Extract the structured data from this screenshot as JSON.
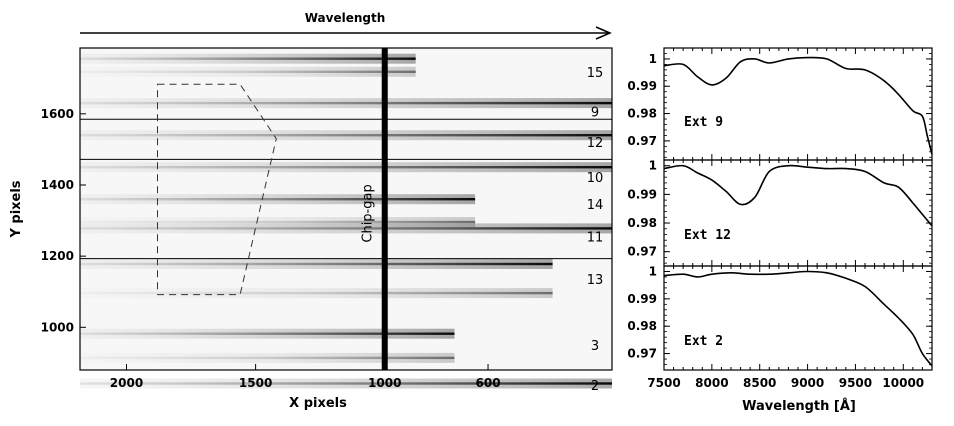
{
  "chart_data": [
    {
      "type": "heatmap",
      "top_label": "Wavelength",
      "xlabel": "X pixels",
      "ylabel": "Y pixels",
      "x_ticks": [
        "2000",
        "1500",
        "1000",
        "600"
      ],
      "y_ticks": [
        "1000",
        "1200",
        "1400",
        "1600"
      ],
      "xlim": [
        2180,
        120
      ],
      "ylim": [
        880,
        1785
      ],
      "gap_label": "Chip-gap",
      "gap_x": 1000,
      "slit_numbers": [
        {
          "label": "15",
          "y": 1715
        },
        {
          "label": "9",
          "y": 1604
        },
        {
          "label": "12",
          "y": 1518
        },
        {
          "label": "10",
          "y": 1420
        },
        {
          "label": "14",
          "y": 1344
        },
        {
          "label": "11",
          "y": 1253
        },
        {
          "label": "13",
          "y": 1133
        },
        {
          "label": "3",
          "y": 947
        },
        {
          "label": "2",
          "y": 835
        }
      ],
      "spectra": [
        {
          "y": 1755,
          "x_end": 880,
          "dark": true
        },
        {
          "y": 1718,
          "x_end": 880,
          "dark": false
        },
        {
          "y": 1630,
          "x_end": 120,
          "dark": true
        },
        {
          "y": 1540,
          "x_end": 120,
          "dark": true
        },
        {
          "y": 1450,
          "x_end": 120,
          "dark": true
        },
        {
          "y": 1360,
          "x_end": 650,
          "dark": true
        },
        {
          "y": 1296,
          "x_end": 650,
          "dark": false
        },
        {
          "y": 1278,
          "x_end": 120,
          "dark": true
        },
        {
          "y": 1178,
          "x_end": 350,
          "dark": true
        },
        {
          "y": 1096,
          "x_end": 350,
          "dark": false
        },
        {
          "y": 982,
          "x_end": 730,
          "dark": true
        },
        {
          "y": 914,
          "x_end": 730,
          "dark": false
        },
        {
          "y": 842,
          "x_end": 120,
          "dark": true
        }
      ],
      "thin_lines": [
        1585,
        1472,
        1193
      ],
      "region_outline": [
        [
          1880,
          1683
        ],
        [
          1560,
          1683
        ],
        [
          1420,
          1530
        ],
        [
          1560,
          1092
        ],
        [
          1880,
          1092
        ]
      ]
    },
    {
      "type": "line",
      "xlabel": "Wavelength [Å]",
      "xlim": [
        7500,
        10300
      ],
      "x_ticks": [
        "7500",
        "8000",
        "8500",
        "9000",
        "9500",
        "10000"
      ],
      "panels": [
        {
          "label": "Ext 9",
          "ylim": [
            0.963,
            1.004
          ],
          "y_ticks": [
            "1",
            "0.99",
            "0.98",
            "0.97"
          ],
          "x": [
            7500,
            7700,
            7850,
            8000,
            8150,
            8300,
            8450,
            8600,
            8800,
            9000,
            9200,
            9400,
            9600,
            9800,
            9950,
            10100,
            10200,
            10250,
            10300
          ],
          "y": [
            0.9975,
            0.998,
            0.9935,
            0.9905,
            0.993,
            0.999,
            1.0,
            0.9985,
            1.0,
            1.0005,
            1.0,
            0.9965,
            0.996,
            0.992,
            0.987,
            0.981,
            0.979,
            0.972,
            0.965
          ]
        },
        {
          "label": "Ext 12",
          "ylim": [
            0.965,
            1.002
          ],
          "y_ticks": [
            "1",
            "0.99",
            "0.98",
            "0.97"
          ],
          "x": [
            7500,
            7700,
            7850,
            8000,
            8150,
            8300,
            8450,
            8600,
            8800,
            9000,
            9200,
            9400,
            9600,
            9800,
            9950,
            10100,
            10200,
            10300
          ],
          "y": [
            0.999,
            1.0,
            0.9975,
            0.995,
            0.991,
            0.9865,
            0.989,
            0.998,
            1.0,
            0.9995,
            0.999,
            0.999,
            0.998,
            0.994,
            0.9925,
            0.987,
            0.983,
            0.979
          ]
        },
        {
          "label": "Ext 2",
          "ylim": [
            0.964,
            1.002
          ],
          "y_ticks": [
            "1",
            "0.99",
            "0.98",
            "0.97"
          ],
          "x": [
            7500,
            7700,
            7850,
            8000,
            8200,
            8400,
            8600,
            8800,
            9000,
            9200,
            9400,
            9600,
            9800,
            9950,
            10100,
            10200,
            10300
          ],
          "y": [
            0.9985,
            0.999,
            0.998,
            0.999,
            0.9995,
            0.999,
            0.999,
            0.9995,
            1.0,
            0.9995,
            0.9975,
            0.9945,
            0.988,
            0.983,
            0.977,
            0.97,
            0.9655
          ]
        }
      ]
    }
  ]
}
